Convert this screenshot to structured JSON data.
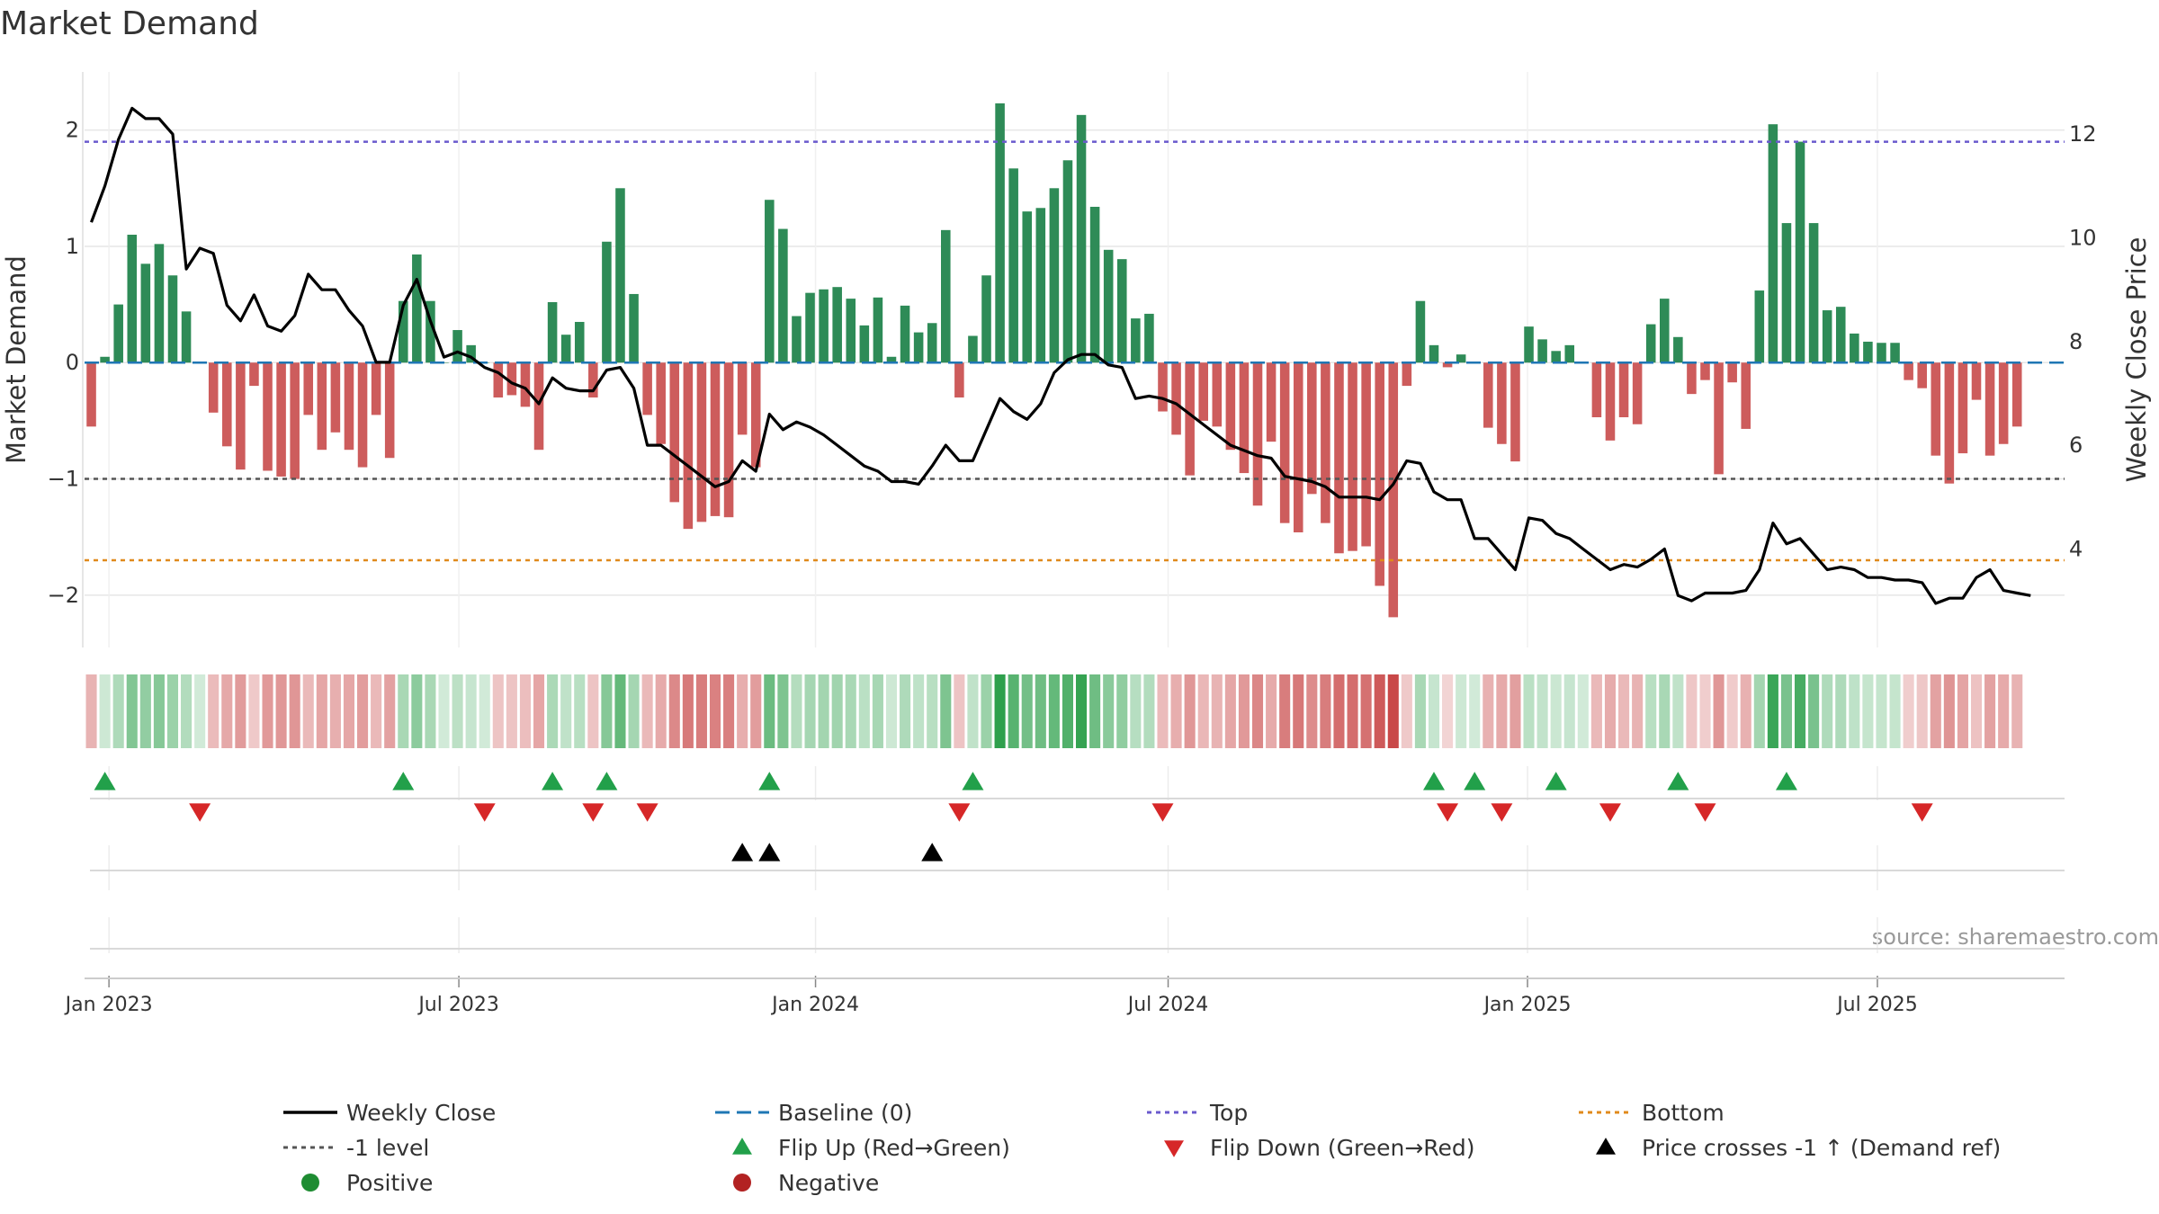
{
  "chart_data": {
    "type": "bar",
    "title": "Market Demand",
    "ylabel": "Market Demand",
    "y2label": "Weekly Close Price",
    "ylim": [
      -2.45,
      2.5
    ],
    "y2lim": [
      2.1,
      13.2
    ],
    "yticks": [
      {
        "v": 2,
        "label": "2"
      },
      {
        "v": 1,
        "label": "1"
      },
      {
        "v": 0,
        "label": "0"
      },
      {
        "v": -1,
        "label": "−1"
      },
      {
        "v": -2,
        "label": "−2"
      }
    ],
    "y2ticks": [
      {
        "v": 12,
        "label": "12"
      },
      {
        "v": 10,
        "label": "10"
      },
      {
        "v": 8,
        "label": "8"
      },
      {
        "v": 6,
        "label": "6"
      },
      {
        "v": 4,
        "label": "4"
      }
    ],
    "x_start": "2022-12-26",
    "x_range_weeks": [
      -0.5,
      145.5
    ],
    "xticks": [
      {
        "week": 1.3,
        "label": "Jan 2023"
      },
      {
        "week": 27.1,
        "label": "Jul 2023"
      },
      {
        "week": 53.4,
        "label": "Jan 2024"
      },
      {
        "week": 79.4,
        "label": "Jul 2024"
      },
      {
        "week": 105.9,
        "label": "Jan 2025"
      },
      {
        "week": 131.7,
        "label": "Jul 2025"
      }
    ],
    "reference_lines": {
      "top": 1.9,
      "minus_one": -1,
      "bottom": -1.7,
      "baseline": 0
    },
    "demand": [
      -0.55,
      0.05,
      0.5,
      1.1,
      0.85,
      1.02,
      0.75,
      0.44,
      0,
      -0.43,
      -0.72,
      -0.92,
      -0.2,
      -0.93,
      -0.98,
      -1.0,
      -0.45,
      -0.75,
      -0.6,
      -0.75,
      -0.9,
      -0.45,
      -0.82,
      0.53,
      0.93,
      0.53,
      0,
      0.28,
      0.15,
      0,
      -0.3,
      -0.28,
      -0.38,
      -0.75,
      0.52,
      0.24,
      0.35,
      -0.3,
      1.04,
      1.5,
      0.59,
      -0.45,
      -0.7,
      -1.2,
      -1.43,
      -1.37,
      -1.32,
      -1.33,
      -0.62,
      -0.9,
      1.4,
      1.15,
      0.4,
      0.6,
      0.63,
      0.65,
      0.55,
      0.32,
      0.56,
      0.05,
      0.49,
      0.26,
      0.34,
      1.14,
      -0.3,
      0.23,
      0.75,
      2.23,
      1.67,
      1.3,
      1.33,
      1.5,
      1.74,
      2.13,
      1.34,
      0.97,
      0.89,
      0.38,
      0.42,
      -0.42,
      -0.62,
      -0.97,
      -0.5,
      -0.55,
      -0.75,
      -0.95,
      -1.23,
      -0.68,
      -1.38,
      -1.46,
      -1.13,
      -1.38,
      -1.64,
      -1.62,
      -1.58,
      -1.92,
      -2.19,
      -0.2,
      0.53,
      0.15,
      -0.04,
      0.07,
      0,
      -0.56,
      -0.7,
      -0.85,
      0.31,
      0.2,
      0.1,
      0.15,
      0,
      -0.47,
      -0.67,
      -0.47,
      -0.53,
      0.33,
      0.55,
      0.22,
      -0.27,
      -0.15,
      -0.96,
      -0.17,
      -0.57,
      0.62,
      2.05,
      1.2,
      1.9,
      1.2,
      0.45,
      0.48,
      0.25,
      0.18,
      0.17,
      0.17,
      -0.15,
      -0.22,
      -0.8,
      -1.04,
      -0.78,
      -0.32,
      -0.8,
      -0.7,
      -0.55
    ],
    "price": [
      10.3,
      11.0,
      11.9,
      12.5,
      12.3,
      12.3,
      12.0,
      9.4,
      9.8,
      9.7,
      8.7,
      8.4,
      8.9,
      8.3,
      8.2,
      8.5,
      9.3,
      9.0,
      9.0,
      8.6,
      8.3,
      7.6,
      7.6,
      8.7,
      9.2,
      8.4,
      7.7,
      7.8,
      7.7,
      7.5,
      7.4,
      7.2,
      7.1,
      6.8,
      7.3,
      7.1,
      7.05,
      7.05,
      7.45,
      7.5,
      7.1,
      6.0,
      6.0,
      5.8,
      5.6,
      5.4,
      5.2,
      5.3,
      5.7,
      5.5,
      6.6,
      6.3,
      6.45,
      6.35,
      6.2,
      6.0,
      5.8,
      5.6,
      5.5,
      5.3,
      5.3,
      5.25,
      5.6,
      6.0,
      5.7,
      5.7,
      6.3,
      6.9,
      6.65,
      6.5,
      6.8,
      7.4,
      7.65,
      7.75,
      7.75,
      7.55,
      7.5,
      6.9,
      6.95,
      6.9,
      6.8,
      6.6,
      6.4,
      6.2,
      6.0,
      5.9,
      5.8,
      5.75,
      5.4,
      5.35,
      5.3,
      5.2,
      5.0,
      5.0,
      5.0,
      4.95,
      5.25,
      5.7,
      5.65,
      5.1,
      4.95,
      4.95,
      4.2,
      4.2,
      3.9,
      3.6,
      4.6,
      4.55,
      4.3,
      4.2,
      4.0,
      3.8,
      3.6,
      3.7,
      3.65,
      3.8,
      4.0,
      3.1,
      3.0,
      3.15,
      3.15,
      3.15,
      3.2,
      3.6,
      4.5,
      4.1,
      4.2,
      3.9,
      3.6,
      3.65,
      3.6,
      3.45,
      3.45,
      3.4,
      3.4,
      3.35,
      2.95,
      3.05,
      3.05,
      3.45,
      3.6,
      3.2,
      3.15,
      3.1
    ],
    "flip_up_weeks": [
      1,
      23,
      34,
      38,
      50,
      65,
      99,
      102,
      108,
      117,
      125
    ],
    "flip_down_weeks": [
      8,
      29,
      37,
      41,
      64,
      79,
      100,
      104,
      112,
      119,
      135
    ],
    "price_cross_weeks": [
      48,
      50,
      62
    ],
    "legend": [
      {
        "label": "Weekly Close",
        "type": "line",
        "color": "#000000"
      },
      {
        "label": "Baseline (0)",
        "type": "dashed",
        "color": "#1f77b4"
      },
      {
        "label": "Top",
        "type": "dotted",
        "color": "#6a5acd"
      },
      {
        "label": "Bottom",
        "type": "dotted",
        "color": "#e08a1c"
      },
      {
        "label": "-1 level",
        "type": "dotted",
        "color": "#555555"
      },
      {
        "label": "Flip Up (Red→Green)",
        "type": "tri-up",
        "color": "#22a04a"
      },
      {
        "label": "Flip Down (Green→Red)",
        "type": "tri-down",
        "color": "#d62728"
      },
      {
        "label": "Price crosses -1 ↑ (Demand ref)",
        "type": "tri-up",
        "color": "#000000"
      },
      {
        "label": "Positive",
        "type": "dot",
        "color": "#1e8c32"
      },
      {
        "label": "Negative",
        "type": "dot",
        "color": "#b22222"
      }
    ],
    "source": "source: sharemaestro.com"
  },
  "colors": {
    "positive_bar": "#2e8b57",
    "negative_bar": "#cd5c5c",
    "price_line": "#000000",
    "grid": "#e6e6e6"
  }
}
